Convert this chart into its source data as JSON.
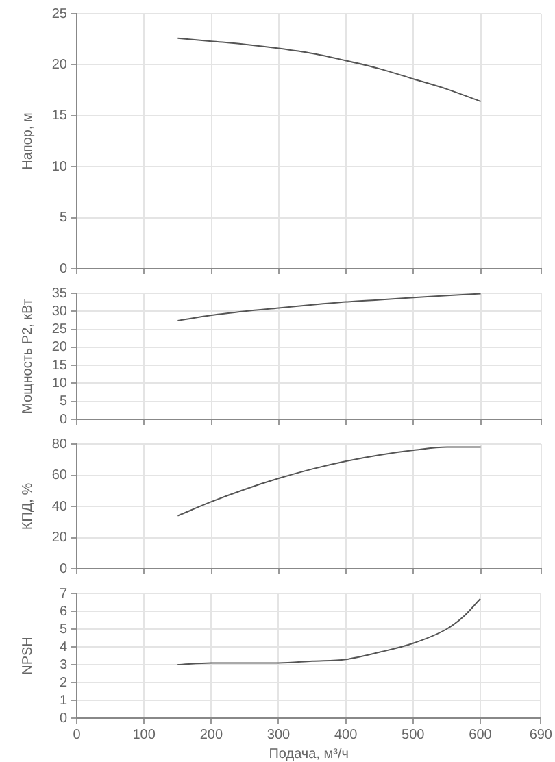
{
  "chart_data": [
    {
      "type": "line",
      "ylabel": "Напор, м",
      "x": [
        150,
        200,
        250,
        300,
        350,
        400,
        450,
        500,
        550,
        600
      ],
      "values": [
        22.6,
        22.3,
        22.0,
        21.6,
        21.1,
        20.4,
        19.6,
        18.6,
        17.6,
        16.4
      ],
      "color": "#555555",
      "xlim": [
        0,
        690
      ],
      "xticks": [
        0,
        100,
        200,
        300,
        400,
        500,
        600,
        690
      ],
      "ylim": [
        0,
        25
      ],
      "yticks": [
        0,
        5,
        10,
        15,
        20,
        25
      ],
      "grid": true,
      "tick_labels": "y"
    },
    {
      "type": "line",
      "ylabel": "Мощность P2, кВт",
      "x": [
        150,
        200,
        250,
        300,
        350,
        400,
        450,
        500,
        550,
        600
      ],
      "values": [
        27.4,
        28.9,
        30.0,
        30.9,
        31.8,
        32.6,
        33.2,
        33.8,
        34.4,
        34.9
      ],
      "color": "#555555",
      "xlim": [
        0,
        690
      ],
      "xticks": [
        0,
        100,
        200,
        300,
        400,
        500,
        600,
        690
      ],
      "ylim": [
        0,
        35
      ],
      "yticks": [
        0,
        5,
        10,
        15,
        20,
        25,
        30,
        35
      ],
      "grid": true,
      "tick_labels": "y"
    },
    {
      "type": "line",
      "ylabel": "КПД, %",
      "x": [
        150,
        200,
        250,
        300,
        350,
        400,
        450,
        500,
        550,
        600
      ],
      "values": [
        34,
        43,
        51,
        58,
        64,
        69,
        73,
        76,
        78,
        78
      ],
      "color": "#555555",
      "xlim": [
        0,
        690
      ],
      "xticks": [
        0,
        100,
        200,
        300,
        400,
        500,
        600,
        690
      ],
      "ylim": [
        0,
        80
      ],
      "yticks": [
        0,
        20,
        40,
        60,
        80
      ],
      "grid": true,
      "tick_labels": "y"
    },
    {
      "type": "line",
      "ylabel": "NPSH",
      "xlabel": "Подача, м³/ч",
      "x": [
        150,
        200,
        250,
        300,
        350,
        400,
        450,
        500,
        550,
        575,
        600
      ],
      "values": [
        3.0,
        3.1,
        3.1,
        3.1,
        3.2,
        3.3,
        3.7,
        4.2,
        5.0,
        5.7,
        6.7
      ],
      "color": "#555555",
      "xlim": [
        0,
        690
      ],
      "xticks": [
        0,
        100,
        200,
        300,
        400,
        500,
        600,
        690
      ],
      "ylim": [
        0,
        7
      ],
      "yticks": [
        0,
        1,
        2,
        3,
        4,
        5,
        6,
        7
      ],
      "grid": true
    }
  ]
}
